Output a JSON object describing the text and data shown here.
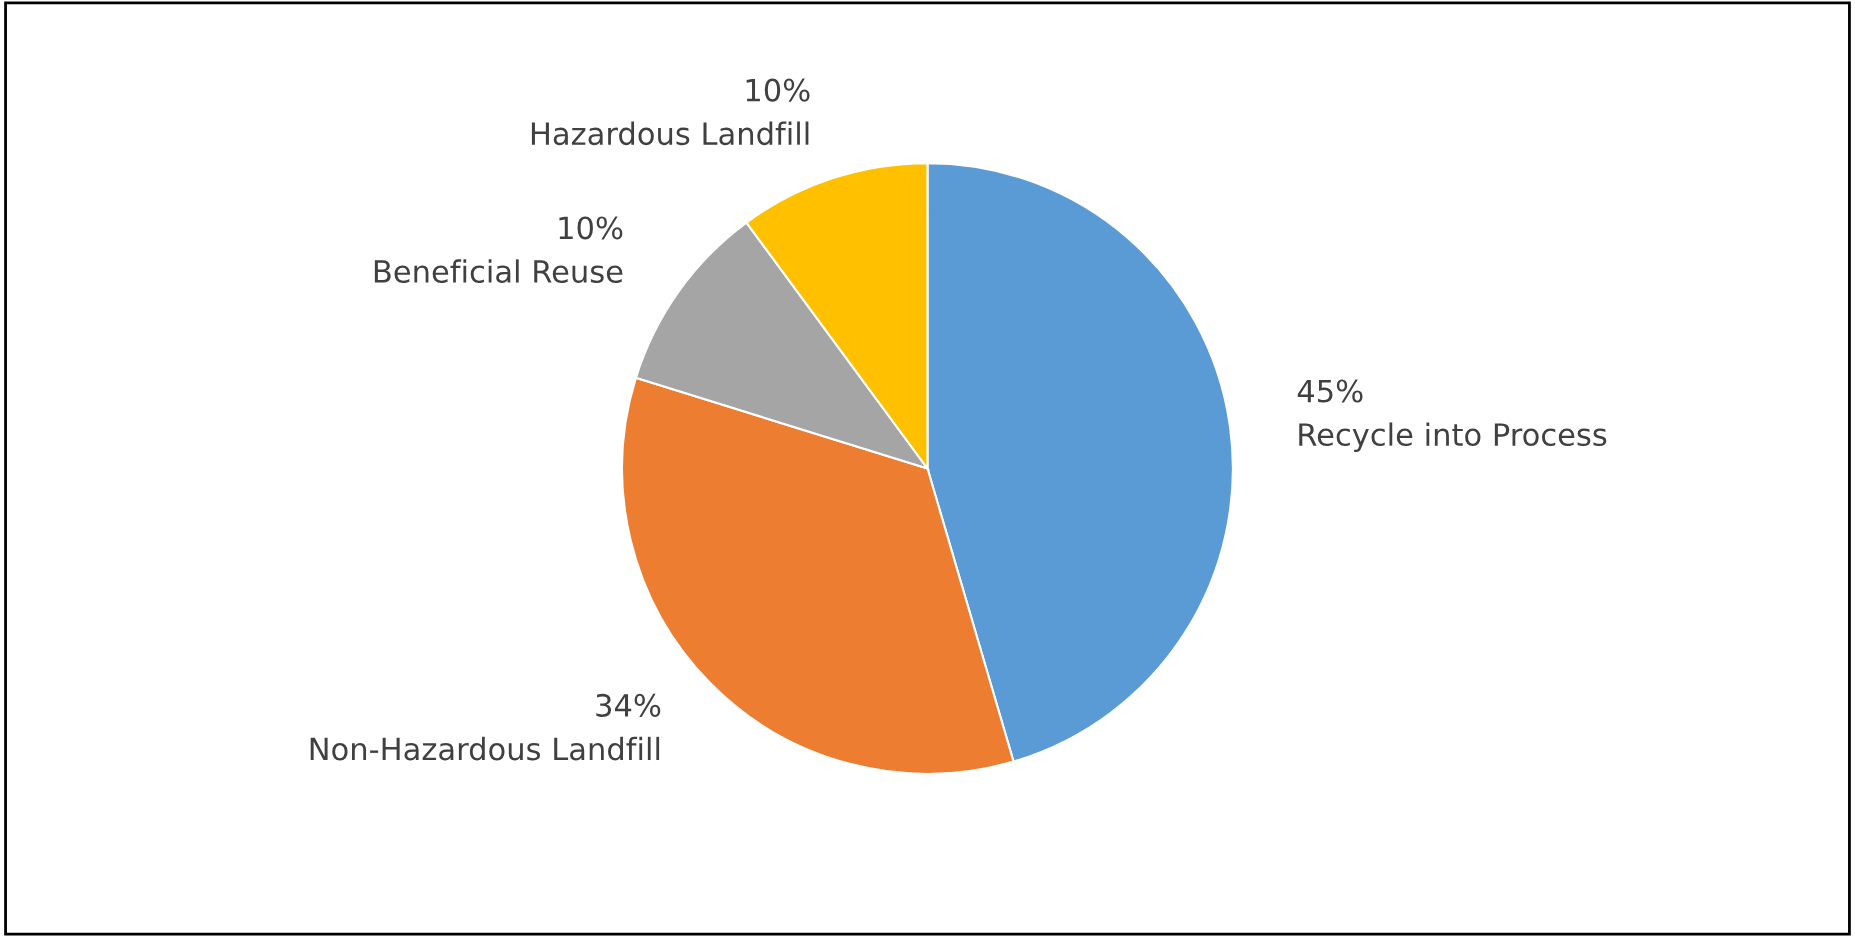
{
  "chart_data": {
    "type": "pie",
    "categories": [
      "Recycle into Process",
      "Non-Hazardous Landfill",
      "Beneficial Reuse",
      "Hazardous Landfill"
    ],
    "values": [
      45,
      34,
      10,
      10
    ],
    "colors": [
      "#5b9bd5",
      "#ed7d31",
      "#a5a5a5",
      "#ffc000"
    ],
    "value_labels": [
      "45%",
      "34%",
      "10%",
      "10%"
    ],
    "legend": false
  }
}
